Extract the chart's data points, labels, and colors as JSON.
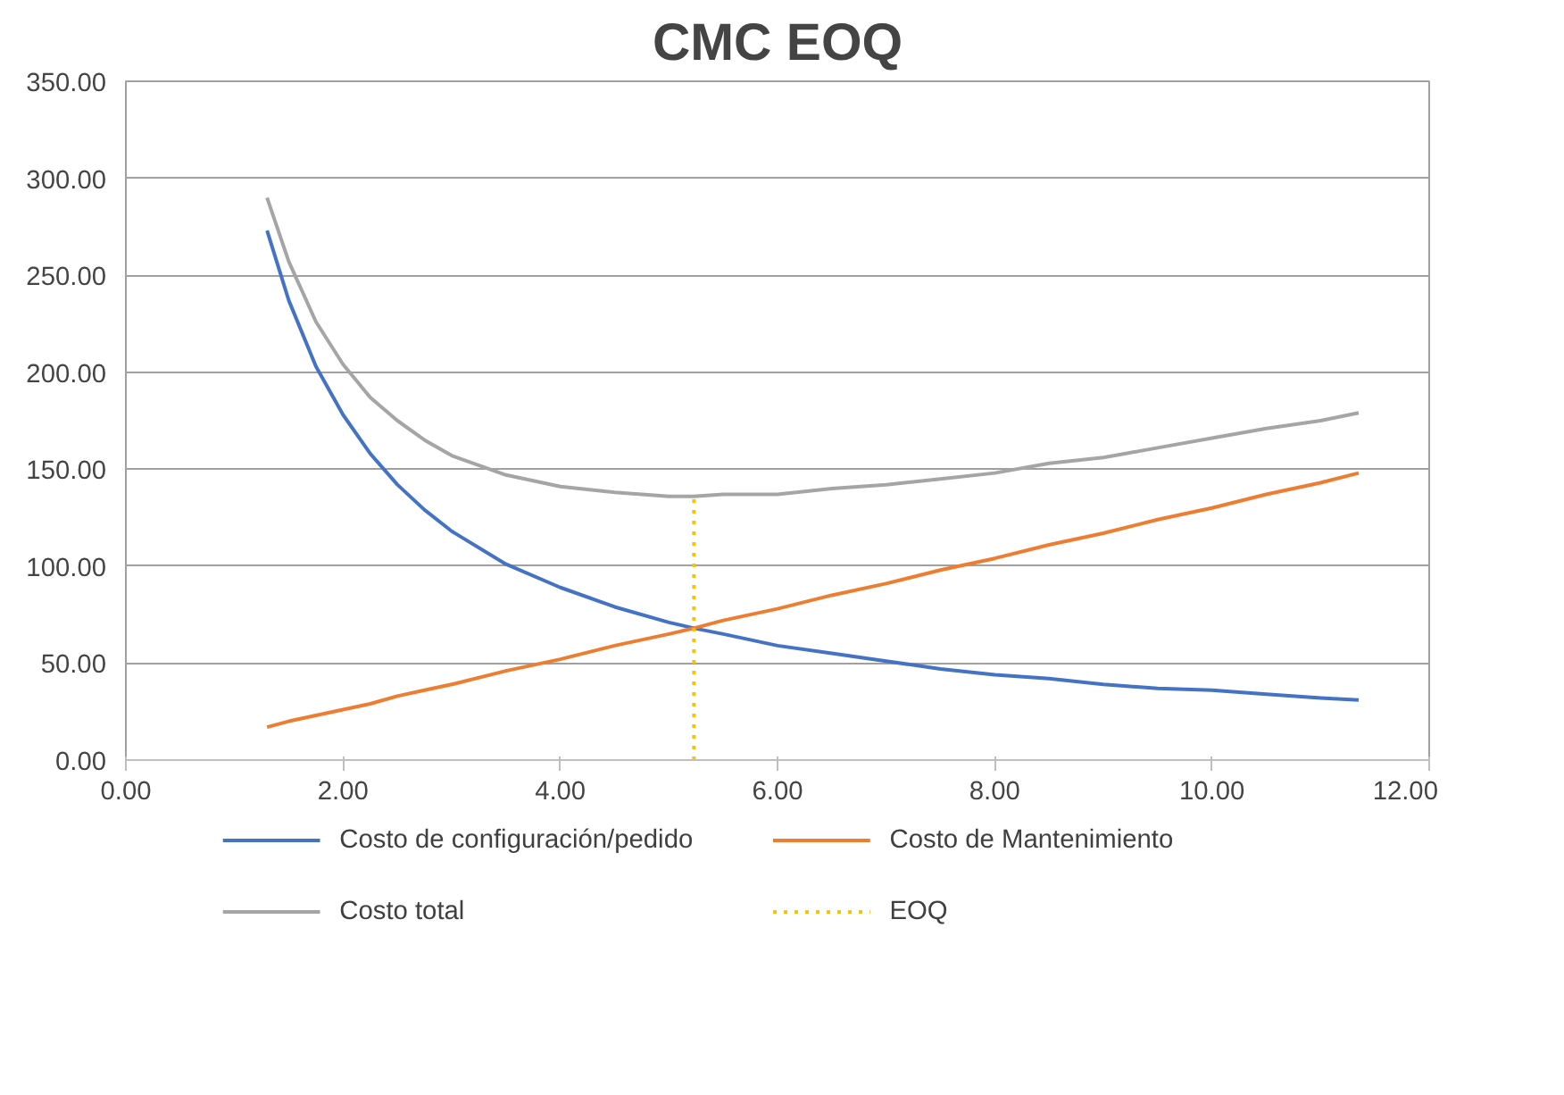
{
  "chart_data": {
    "type": "line",
    "title": "CMC EOQ",
    "x": [
      1.3,
      1.5,
      1.75,
      2,
      2.25,
      2.5,
      2.75,
      3,
      3.5,
      4,
      4.5,
      5,
      5.23,
      5.5,
      6,
      6.5,
      7,
      7.5,
      8,
      8.5,
      9,
      9.5,
      10,
      10.5,
      11,
      11.35
    ],
    "series": [
      {
        "name": "Costo de configuración/pedido",
        "color": "#4472c4",
        "values": [
          273,
          237,
          203,
          178,
          158,
          142,
          129,
          118,
          101,
          89,
          79,
          71,
          68,
          65,
          59,
          55,
          51,
          47,
          44,
          42,
          39,
          37,
          36,
          34,
          32,
          31
        ]
      },
      {
        "name": "Costo de Mantenimiento",
        "color": "#ed7d31",
        "values": [
          17,
          20,
          23,
          26,
          29,
          33,
          36,
          39,
          46,
          52,
          59,
          65,
          68,
          72,
          78,
          85,
          91,
          98,
          104,
          111,
          117,
          124,
          130,
          137,
          143,
          148
        ]
      },
      {
        "name": "Costo total",
        "color": "#a5a5a5",
        "values": [
          290,
          257,
          226,
          204,
          187,
          175,
          165,
          157,
          147,
          141,
          138,
          136,
          136,
          137,
          137,
          140,
          142,
          145,
          148,
          153,
          156,
          161,
          166,
          171,
          175,
          179
        ]
      },
      {
        "name": "EOQ",
        "color": "#ffc000",
        "x": [
          5.23,
          5.23
        ],
        "values": [
          0,
          136
        ],
        "line_style": "dotted"
      }
    ],
    "xlim": [
      0,
      12
    ],
    "xticks": [
      {
        "value": 0,
        "label": "0.00"
      },
      {
        "value": 2,
        "label": "2.00"
      },
      {
        "value": 4,
        "label": "4.00"
      },
      {
        "value": 6,
        "label": "6.00"
      },
      {
        "value": 8,
        "label": "8.00"
      },
      {
        "value": 10,
        "label": "10.00"
      },
      {
        "value": 12,
        "label": "12.00"
      }
    ],
    "ylim": [
      0,
      350
    ],
    "yticks": [
      {
        "value": 0,
        "label": "0.00"
      },
      {
        "value": 50,
        "label": "50.00"
      },
      {
        "value": 100,
        "label": "100.00"
      },
      {
        "value": 150,
        "label": "150.00"
      },
      {
        "value": 200,
        "label": "200.00"
      },
      {
        "value": 250,
        "label": "250.00"
      },
      {
        "value": 300,
        "label": "300.00"
      },
      {
        "value": 350,
        "label": "350.00"
      }
    ],
    "grid": "y",
    "legend": "bottom",
    "line_style": "solid",
    "marker": "none"
  }
}
